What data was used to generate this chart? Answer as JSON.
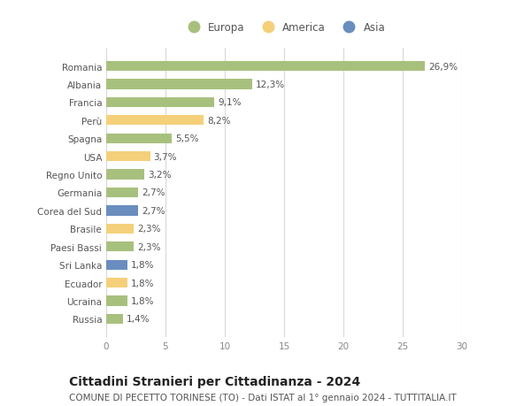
{
  "categories": [
    "Romania",
    "Albania",
    "Francia",
    "Perù",
    "Spagna",
    "USA",
    "Regno Unito",
    "Germania",
    "Corea del Sud",
    "Brasile",
    "Paesi Bassi",
    "Sri Lanka",
    "Ecuador",
    "Ucraina",
    "Russia"
  ],
  "values": [
    26.9,
    12.3,
    9.1,
    8.2,
    5.5,
    3.7,
    3.2,
    2.7,
    2.7,
    2.3,
    2.3,
    1.8,
    1.8,
    1.8,
    1.4
  ],
  "labels": [
    "26,9%",
    "12,3%",
    "9,1%",
    "8,2%",
    "5,5%",
    "3,7%",
    "3,2%",
    "2,7%",
    "2,7%",
    "2,3%",
    "2,3%",
    "1,8%",
    "1,8%",
    "1,8%",
    "1,4%"
  ],
  "continent": [
    "Europa",
    "Europa",
    "Europa",
    "America",
    "Europa",
    "America",
    "Europa",
    "Europa",
    "Asia",
    "America",
    "Europa",
    "Asia",
    "America",
    "Europa",
    "Europa"
  ],
  "color_europa": "#a8c07e",
  "color_america": "#f5d07a",
  "color_asia": "#6a8dbf",
  "legend_labels": [
    "Europa",
    "America",
    "Asia"
  ],
  "title": "Cittadini Stranieri per Cittadinanza - 2024",
  "subtitle": "COMUNE DI PECETTO TORINESE (TO) - Dati ISTAT al 1° gennaio 2024 - TUTTITALIA.IT",
  "xlim": [
    0,
    30
  ],
  "xticks": [
    0,
    5,
    10,
    15,
    20,
    25,
    30
  ],
  "background_color": "#ffffff",
  "grid_color": "#d8d8d8",
  "bar_height": 0.55,
  "title_fontsize": 10,
  "subtitle_fontsize": 7.5,
  "label_fontsize": 7.5,
  "tick_fontsize": 7.5,
  "legend_fontsize": 8.5
}
